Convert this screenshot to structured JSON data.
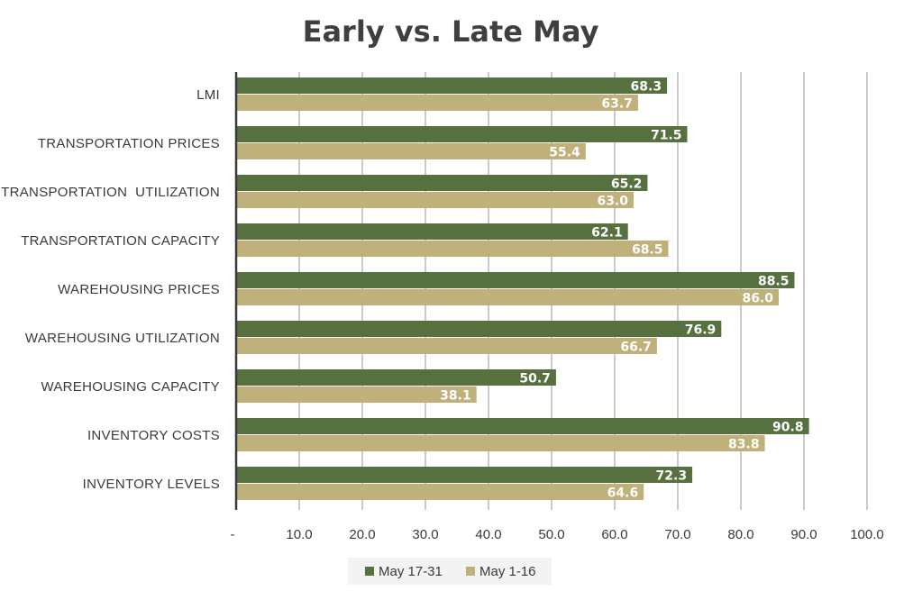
{
  "chart_data": {
    "type": "bar",
    "orientation": "horizontal",
    "title": "Early vs. Late May",
    "categories": [
      "LMI",
      "TRANSPORTATION PRICES",
      "TRANSPORTATION  UTILIZATION",
      "TRANSPORTATION CAPACITY",
      "WAREHOUSING PRICES",
      "WAREHOUSING UTILIZATION",
      "WAREHOUSING CAPACITY",
      "INVENTORY COSTS",
      "INVENTORY LEVELS"
    ],
    "series": [
      {
        "name": "May 17-31",
        "color": "#56703f",
        "values": [
          68.3,
          71.5,
          65.2,
          62.1,
          88.5,
          76.9,
          50.7,
          90.8,
          72.3
        ]
      },
      {
        "name": "May 1-16",
        "color": "#c0b07a",
        "values": [
          63.7,
          55.4,
          63.0,
          68.5,
          86.0,
          66.7,
          38.1,
          83.8,
          64.6
        ]
      }
    ],
    "xlim": [
      0,
      100
    ],
    "xticks": [
      "-",
      "10.0",
      "20.0",
      "30.0",
      "40.0",
      "50.0",
      "60.0",
      "70.0",
      "80.0",
      "90.0",
      "100.0"
    ],
    "xtick_values": [
      0,
      10,
      20,
      30,
      40,
      50,
      60,
      70,
      80,
      90,
      100
    ],
    "grid": "vertical",
    "legend_position": "bottom-center",
    "xlabel": "",
    "ylabel": ""
  }
}
